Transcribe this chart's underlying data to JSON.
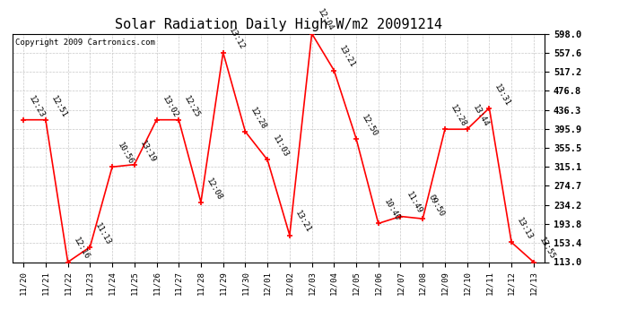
{
  "title": "Solar Radiation Daily High W/m2 20091214",
  "copyright": "Copyright 2009 Cartronics.com",
  "dates": [
    "11/20",
    "11/21",
    "11/22",
    "11/23",
    "11/24",
    "11/25",
    "11/26",
    "11/27",
    "11/28",
    "11/29",
    "11/30",
    "12/01",
    "12/02",
    "12/03",
    "12/04",
    "12/05",
    "12/06",
    "12/07",
    "12/08",
    "12/09",
    "12/10",
    "12/11",
    "12/12",
    "12/13"
  ],
  "values": [
    415,
    415,
    113,
    145,
    315,
    320,
    415,
    415,
    240,
    558,
    390,
    330,
    170,
    598,
    520,
    375,
    195,
    210,
    205,
    395,
    395,
    440,
    155,
    113
  ],
  "times": [
    "12:23",
    "12:51",
    "12:16",
    "11:13",
    "10:56",
    "13:19",
    "13:02",
    "12:25",
    "12:08",
    "13:12",
    "12:28",
    "11:03",
    "13:21",
    "12:04",
    "13:21",
    "12:50",
    "10:40",
    "11:49",
    "09:50",
    "12:28",
    "13:44",
    "13:31",
    "13:13",
    "13:55"
  ],
  "ylim": [
    113.0,
    598.0
  ],
  "yticks": [
    113.0,
    153.4,
    193.8,
    234.2,
    274.7,
    315.1,
    355.5,
    395.9,
    436.3,
    476.8,
    517.2,
    557.6,
    598.0
  ],
  "ytick_labels": [
    "113.0",
    "153.4",
    "193.8",
    "234.2",
    "274.7",
    "315.1",
    "355.5",
    "395.9",
    "436.3",
    "476.8",
    "517.2",
    "557.6",
    "598.0"
  ],
  "line_color": "#ff0000",
  "marker_color": "#ff0000",
  "bg_color": "#ffffff",
  "grid_color": "#c8c8c8",
  "title_fontsize": 11,
  "annotation_fontsize": 6.5,
  "copyright_fontsize": 6.5,
  "xtick_fontsize": 6.5,
  "ytick_fontsize": 7.5
}
